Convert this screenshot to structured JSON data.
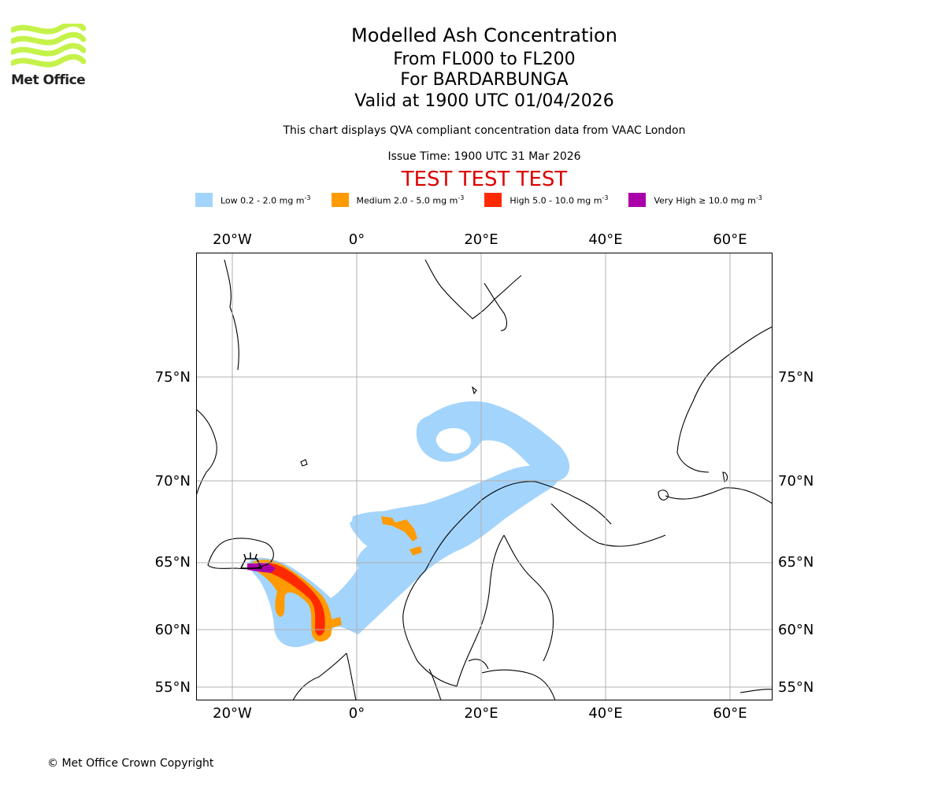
{
  "header": {
    "title": "Modelled Ash Concentration",
    "levels": "From FL000 to FL200",
    "volcano": "For BARDARBUNGA",
    "valid": "Valid at 1900 UTC 01/04/2026",
    "subtitle": "This chart displays QVA compliant concentration data from VAAC London",
    "issue": "Issue Time: 1900 UTC 31 Mar 2026",
    "test_banner": "TEST TEST TEST",
    "test_color": "#dd0000"
  },
  "logo": {
    "text": "Met Office",
    "icon": "met-office-wave-logo",
    "color": "#c5f24a"
  },
  "legend": [
    {
      "label": "Low 0.2 - 2.0 mg m",
      "sup": "-3",
      "color": "#a3d4fc"
    },
    {
      "label": "Medium 2.0 - 5.0 mg m",
      "sup": "-3",
      "color": "#ff9a00"
    },
    {
      "label": "High 5.0 - 10.0 mg m",
      "sup": "-3",
      "color": "#ff2a00"
    },
    {
      "label": "Very High  ≥  10.0 mg m",
      "sup": "-3",
      "color": "#aa00aa"
    }
  ],
  "axes": {
    "lon_ticks": [
      "20°W",
      "0°",
      "20°E",
      "40°E",
      "60°E"
    ],
    "lat_ticks": [
      "75°N",
      "70°N",
      "65°N",
      "60°N",
      "55°N"
    ]
  },
  "footer": {
    "copyright": "© Met Office Crown Copyright"
  }
}
